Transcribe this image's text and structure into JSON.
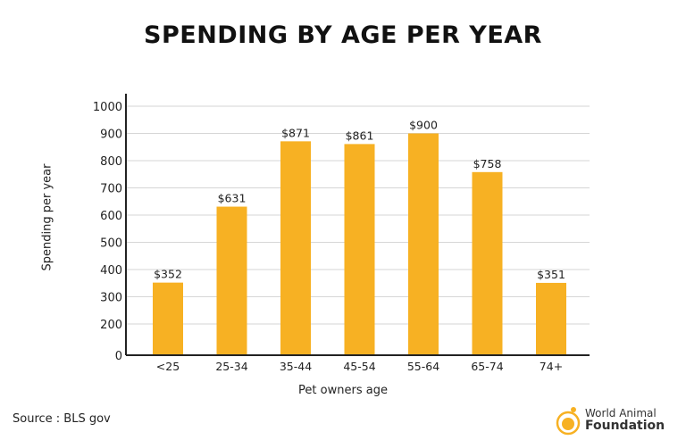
{
  "title": "SPENDING BY AGE PER YEAR",
  "source": "Source : BLS gov",
  "logo": {
    "line1": "World Animal",
    "line2": "Foundation"
  },
  "chart_data": {
    "type": "bar",
    "title": "SPENDING BY AGE PER YEAR",
    "xlabel": "Pet owners age",
    "ylabel": "Spending per year",
    "categories": [
      "<25",
      "25-34",
      "35-44",
      "45-54",
      "55-64",
      "65-74",
      "74+"
    ],
    "values": [
      352,
      631,
      871,
      861,
      900,
      758,
      351
    ],
    "data_labels": [
      "$352",
      "$631",
      "$871",
      "$861",
      "$900",
      "$758",
      "$351"
    ],
    "yticks": [
      0,
      200,
      300,
      400,
      500,
      600,
      700,
      800,
      900,
      1000
    ],
    "ylim": [
      0,
      1000
    ],
    "grid": true,
    "bar_color": "#F7B123"
  }
}
